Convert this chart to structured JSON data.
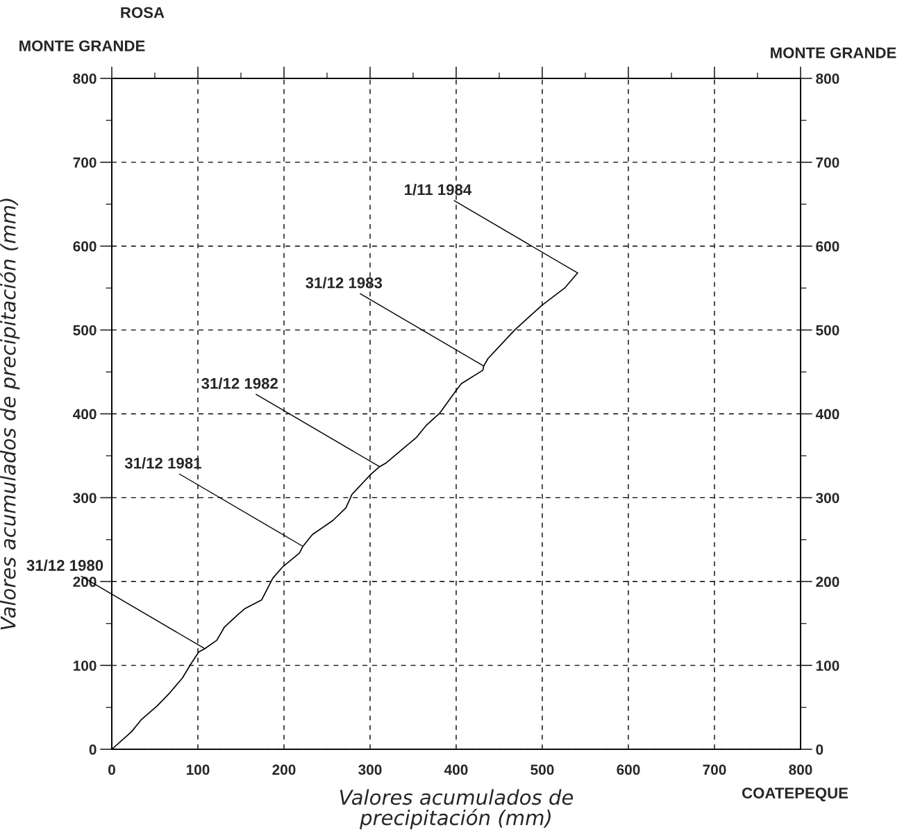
{
  "chart_data": {
    "type": "line",
    "title": "ROSA",
    "subtitle": "MONTE GRANDE",
    "xlabel": "Valores acumulados de\nprecipitación (mm)",
    "ylabel": "Valores acumulados de precipitación (mm)",
    "y2label": "MONTE GRANDE",
    "x": [
      0,
      23,
      34,
      53,
      68,
      82,
      92,
      101,
      108,
      122,
      131,
      147,
      155,
      174,
      187,
      198,
      218,
      222,
      233,
      257,
      272,
      279,
      300,
      311,
      318,
      354,
      365,
      381,
      400,
      406,
      431,
      432,
      437,
      468,
      499,
      526,
      541
    ],
    "series": [
      {
        "color": "#000000",
        "values": [
          0,
          21,
          35,
          52,
          68,
          85,
          102,
          116,
          120,
          130,
          146,
          161,
          168,
          178,
          204,
          217,
          234,
          242,
          256,
          273,
          288,
          304,
          327,
          337,
          341,
          372,
          386,
          401,
          428,
          436,
          452,
          457,
          466,
          500,
          529,
          550,
          568
        ]
      }
    ],
    "annotations": [
      {
        "text": "31/12 1980",
        "x": 108,
        "y": 120
      },
      {
        "text": "31/12 1981",
        "x": 222,
        "y": 242
      },
      {
        "text": "31/12 1982",
        "x": 311,
        "y": 337
      },
      {
        "text": "31/12 1983",
        "x": 432,
        "y": 457
      },
      {
        "text": "1/11 1984",
        "x": 541,
        "y": 568
      },
      "COATEPEQUE"
    ],
    "xlim": [
      0,
      800
    ],
    "ylim": [
      0,
      800
    ],
    "xticks": [
      0,
      100,
      200,
      300,
      400,
      500,
      600,
      700,
      800
    ],
    "yticks": [
      0,
      100,
      200,
      300,
      400,
      500,
      600,
      700,
      800
    ],
    "y2lim": [
      0,
      800
    ],
    "y2ticks": [
      0,
      100,
      200,
      300,
      400,
      500,
      600,
      700,
      800
    ],
    "grid": true,
    "line_style": "solid",
    "marker": "none",
    "legend": false
  }
}
